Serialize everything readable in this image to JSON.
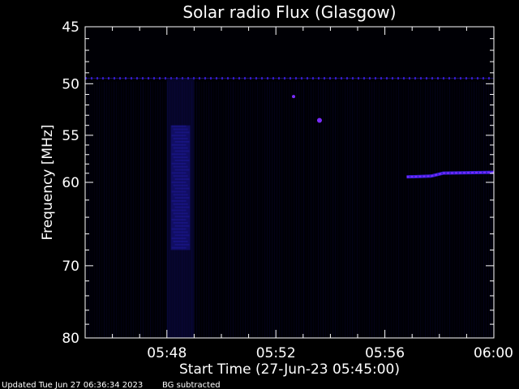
{
  "chart_data": {
    "type": "heatmap",
    "title": "Solar radio Flux (Glasgow)",
    "xlabel": "Start Time (27-Jun-23 05:45:00)",
    "ylabel": "Frequency [MHz]",
    "x_range": [
      "05:45:00",
      "06:00:00"
    ],
    "xlim_minutes": [
      0,
      15
    ],
    "ylim_mhz": [
      45,
      80
    ],
    "y_scale": "log",
    "y_inverted": true,
    "x_ticks": [
      {
        "label": "05:48",
        "minute": 3
      },
      {
        "label": "05:52",
        "minute": 7
      },
      {
        "label": "05:56",
        "minute": 11
      },
      {
        "label": "06:00",
        "minute": 15
      }
    ],
    "y_ticks": [
      {
        "label": "45",
        "value": 45
      },
      {
        "label": "50",
        "value": 50
      },
      {
        "label": "55",
        "value": 55
      },
      {
        "label": "60",
        "value": 60
      },
      {
        "label": "70",
        "value": 70
      },
      {
        "label": "80",
        "value": 80
      }
    ],
    "colors": {
      "background": "#000000",
      "frame": "#ffffff",
      "emission": "#3a1fd8",
      "bright": "#7a2cff"
    },
    "features": [
      {
        "name": "continuous line",
        "frequency_mhz": 49.5,
        "minute_start": 0,
        "minute_end": 15
      },
      {
        "name": "broadband column",
        "minute": 3.5,
        "frequency_mhz_start": 49.5,
        "frequency_mhz_end": 80
      },
      {
        "name": "point",
        "minute": 7.65,
        "frequency_mhz": 51.2
      },
      {
        "name": "point",
        "minute": 8.6,
        "frequency_mhz": 53.5
      },
      {
        "name": "drifting band",
        "minute_start": 11.8,
        "minute_end": 15,
        "frequency_mhz_start": 59.4,
        "frequency_mhz_end": 58.9
      }
    ]
  },
  "footer": {
    "updated": "Updated Tue Jun 27 06:36:34 2023",
    "note": "BG subtracted"
  }
}
